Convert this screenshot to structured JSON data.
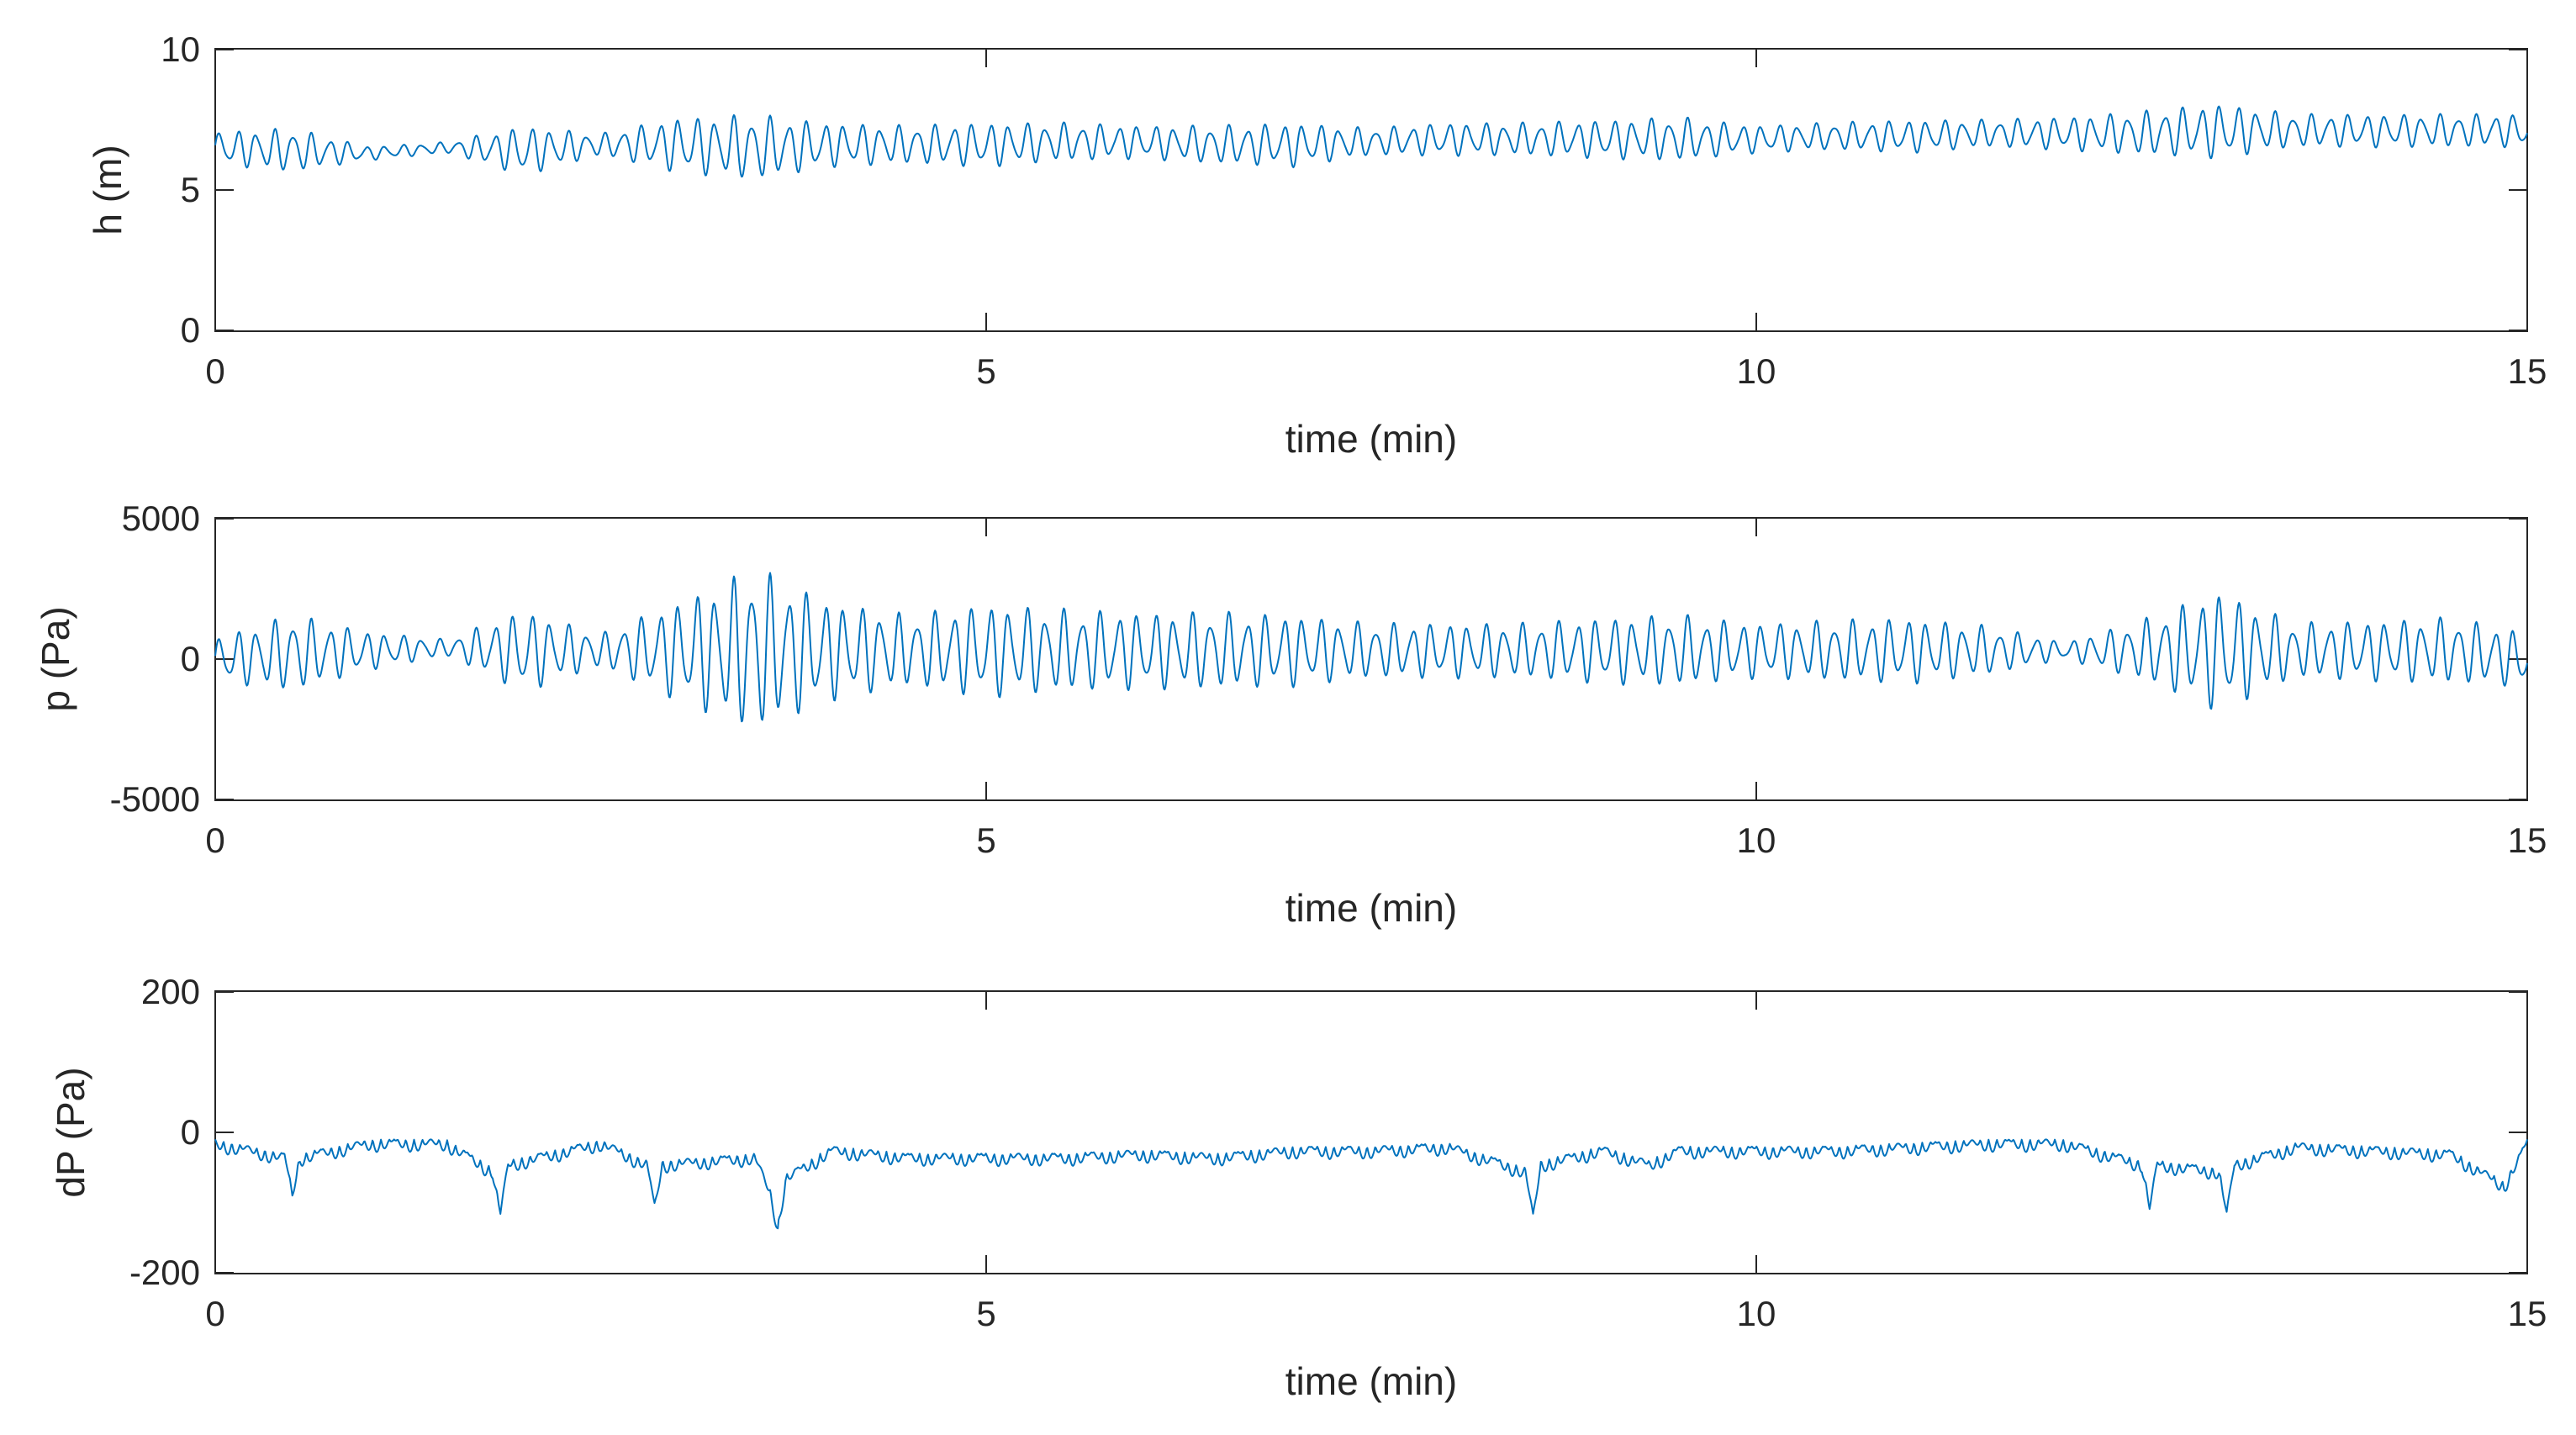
{
  "chart_data": [
    {
      "type": "line",
      "title": "",
      "xlabel": "time (min)",
      "ylabel": "h (m)",
      "xlim": [
        0,
        15
      ],
      "ylim": [
        0,
        10
      ],
      "xticks": [
        "0",
        "5",
        "10",
        "15"
      ],
      "xtick_values": [
        0,
        5,
        10,
        15
      ],
      "yticks": [
        "0",
        "5",
        "10"
      ],
      "ytick_values": [
        0,
        5,
        10
      ],
      "grid": false,
      "line_color": "#0072BD",
      "series": [
        {
          "x": [
            0,
            0.5,
            1,
            1.5,
            2,
            2.5,
            3,
            3.5,
            4,
            4.5,
            5,
            5.5,
            6,
            6.5,
            7,
            7.5,
            8,
            8.5,
            9,
            9.5,
            10,
            10.5,
            11,
            11.5,
            12,
            12.5,
            13,
            13.5,
            14,
            14.5,
            15
          ],
          "y": [
            6.5,
            6.4,
            6.3,
            6.5,
            6.4,
            6.6,
            6.6,
            6.5,
            6.6,
            6.6,
            6.6,
            6.7,
            6.7,
            6.6,
            6.6,
            6.7,
            6.8,
            6.8,
            6.8,
            6.8,
            6.8,
            6.9,
            6.9,
            7.0,
            7.0,
            7.0,
            7.1,
            7.1,
            7.1,
            7.1,
            7.1
          ],
          "amplitude": [
            0.6,
            0.8,
            0.25,
            0.2,
            0.9,
            0.4,
            1.0,
            1.2,
            0.8,
            0.7,
            0.8,
            0.7,
            0.6,
            0.7,
            0.8,
            0.5,
            0.6,
            0.6,
            0.7,
            0.8,
            0.5,
            0.5,
            0.6,
            0.5,
            0.6,
            0.8,
            1.0,
            0.6,
            0.6,
            0.6,
            0.6
          ]
        }
      ]
    },
    {
      "type": "line",
      "title": "",
      "xlabel": "time (min)",
      "ylabel": "p (Pa)",
      "xlim": [
        0,
        15
      ],
      "ylim": [
        -5000,
        5000
      ],
      "xticks": [
        "0",
        "5",
        "10",
        "15"
      ],
      "xtick_values": [
        0,
        5,
        10,
        15
      ],
      "yticks": [
        "-5000",
        "0",
        "5000"
      ],
      "ytick_values": [
        -5000,
        0,
        5000
      ],
      "grid": false,
      "line_color": "#0072BD",
      "series": [
        {
          "x": [
            0,
            0.5,
            1,
            1.5,
            2,
            2.5,
            3,
            3.5,
            4,
            4.5,
            5,
            5.5,
            6,
            6.5,
            7,
            7.5,
            8,
            8.5,
            9,
            9.5,
            10,
            10.5,
            11,
            11.5,
            12,
            12.5,
            13,
            13.5,
            14,
            14.5,
            15
          ],
          "y": [
            0,
            200,
            300,
            400,
            300,
            300,
            300,
            300,
            300,
            300,
            300,
            300,
            300,
            300,
            300,
            300,
            300,
            300,
            300,
            300,
            300,
            300,
            300,
            300,
            300,
            300,
            300,
            300,
            300,
            300,
            0
          ],
          "amplitude": [
            800,
            1400,
            700,
            300,
            1500,
            600,
            1800,
            3000,
            1800,
            1300,
            1700,
            1500,
            1400,
            1400,
            1300,
            1000,
            1000,
            1000,
            1200,
            1300,
            1000,
            1100,
            1200,
            900,
            300,
            1100,
            2200,
            1000,
            1100,
            1200,
            1000
          ]
        }
      ]
    },
    {
      "type": "line",
      "title": "",
      "xlabel": "time (min)",
      "ylabel": "dP (Pa)",
      "xlim": [
        0,
        15
      ],
      "ylim": [
        -200,
        200
      ],
      "xticks": [
        "0",
        "5",
        "10",
        "15"
      ],
      "xtick_values": [
        0,
        5,
        10,
        15
      ],
      "yticks": [
        "-200",
        "0",
        "200"
      ],
      "ytick_values": [
        -200,
        0,
        200
      ],
      "grid": false,
      "line_color": "#0072BD",
      "series": [
        {
          "x": [
            0,
            0.45,
            0.5,
            0.55,
            1,
            1.5,
            1.8,
            1.85,
            1.9,
            2.5,
            2.8,
            2.85,
            2.9,
            3.5,
            3.6,
            3.65,
            3.7,
            4,
            4.5,
            5,
            5.5,
            6,
            6.5,
            7,
            7.5,
            8,
            8.5,
            8.55,
            8.6,
            9,
            9.3,
            9.5,
            10,
            10.5,
            11,
            11.5,
            12,
            12.5,
            12.55,
            12.6,
            13,
            13.05,
            13.1,
            13.5,
            14,
            14.5,
            14.85,
            15
          ],
          "y": [
            -10,
            -30,
            -80,
            -30,
            -10,
            -10,
            -50,
            -110,
            -40,
            -10,
            -40,
            -100,
            -40,
            -30,
            -80,
            -130,
            -60,
            -20,
            -30,
            -30,
            -30,
            -25,
            -30,
            -20,
            -20,
            -15,
            -50,
            -115,
            -40,
            -20,
            -40,
            -20,
            -20,
            -20,
            -15,
            -10,
            -10,
            -40,
            -100,
            -40,
            -50,
            -110,
            -40,
            -15,
            -20,
            -25,
            -70,
            -10
          ],
          "ripple": 18
        }
      ]
    }
  ]
}
